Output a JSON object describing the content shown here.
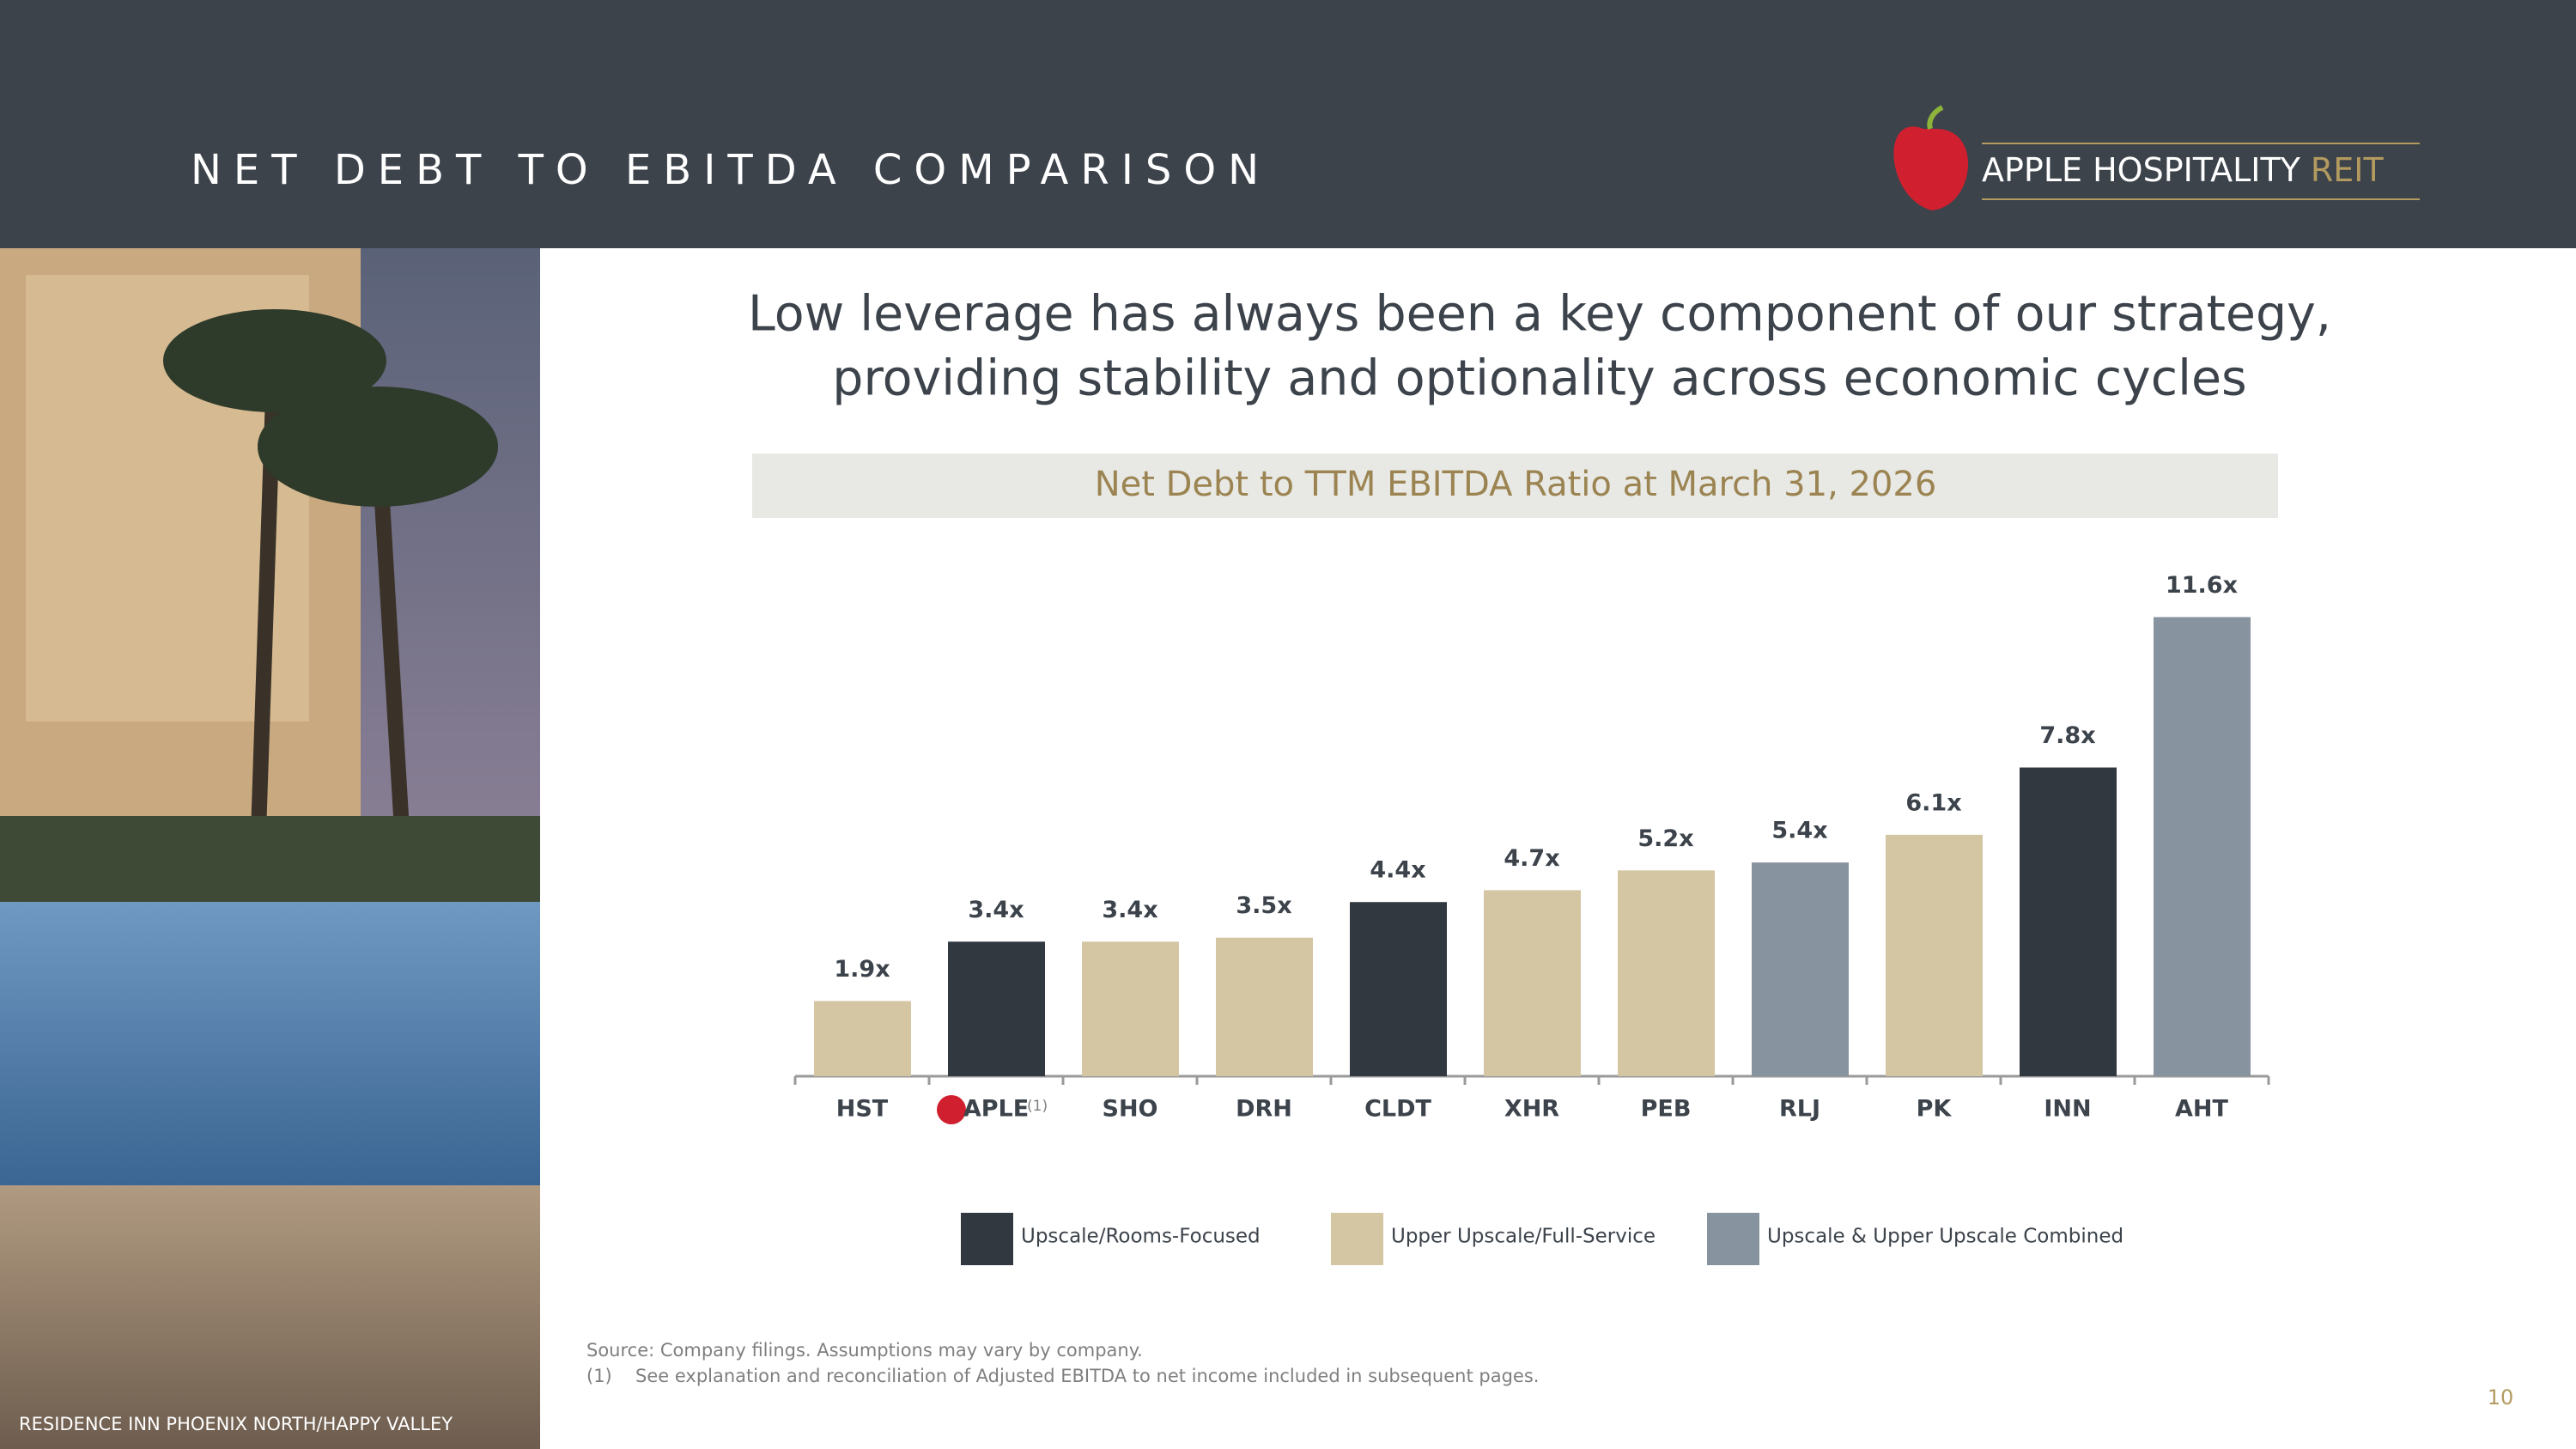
{
  "header": {
    "title": "NET DEBT TO EBITDA COMPARISON",
    "logo_text": "APPLE HOSPITALITY",
    "logo_accent": "REIT"
  },
  "headline": [
    "Low leverage has always been a key component of our strategy,",
    "providing stability and optionality across economic cycles"
  ],
  "photo_caption": "RESIDENCE INN PHOENIX NORTH/HAPPY VALLEY",
  "chart_data": {
    "type": "bar",
    "title": "Net Debt to TTM EBITDA Ratio at March 31, 2026",
    "categories": [
      "HST",
      "APLE",
      "SHO",
      "DRH",
      "CLDT",
      "XHR",
      "PEB",
      "RLJ",
      "PK",
      "INN",
      "AHT"
    ],
    "footnote_ref": "(1)",
    "values": [
      1.9,
      3.4,
      3.4,
      3.5,
      4.4,
      4.7,
      5.2,
      5.4,
      6.1,
      7.8,
      11.6
    ],
    "value_labels": [
      "1.9x",
      "3.4x",
      "3.4x",
      "3.5x",
      "4.4x",
      "4.7x",
      "5.2x",
      "5.4x",
      "6.1x",
      "7.8x",
      "11.6x"
    ],
    "colors": [
      "#d4c5a3",
      "#323840",
      "#d4c5a3",
      "#d4c5a3",
      "#323840",
      "#d4c5a3",
      "#d4c5a3",
      "#8893a0",
      "#d4c5a3",
      "#323840",
      "#8893a0"
    ],
    "ylim": [
      0,
      12
    ],
    "legend": [
      {
        "name": "Upscale/Rooms-Focused",
        "color": "#323840"
      },
      {
        "name": "Upper Upscale/Full-Service",
        "color": "#d4c5a3"
      },
      {
        "name": "Upscale & Upper Upscale Combined",
        "color": "#8893a0"
      }
    ]
  },
  "footnotes": {
    "source": "Source: Company filings. Assumptions may vary by company.",
    "note_marker": "(1)",
    "note_text": "See explanation and reconciliation of Adjusted EBITDA to net income included in subsequent pages."
  },
  "page_number": "10"
}
